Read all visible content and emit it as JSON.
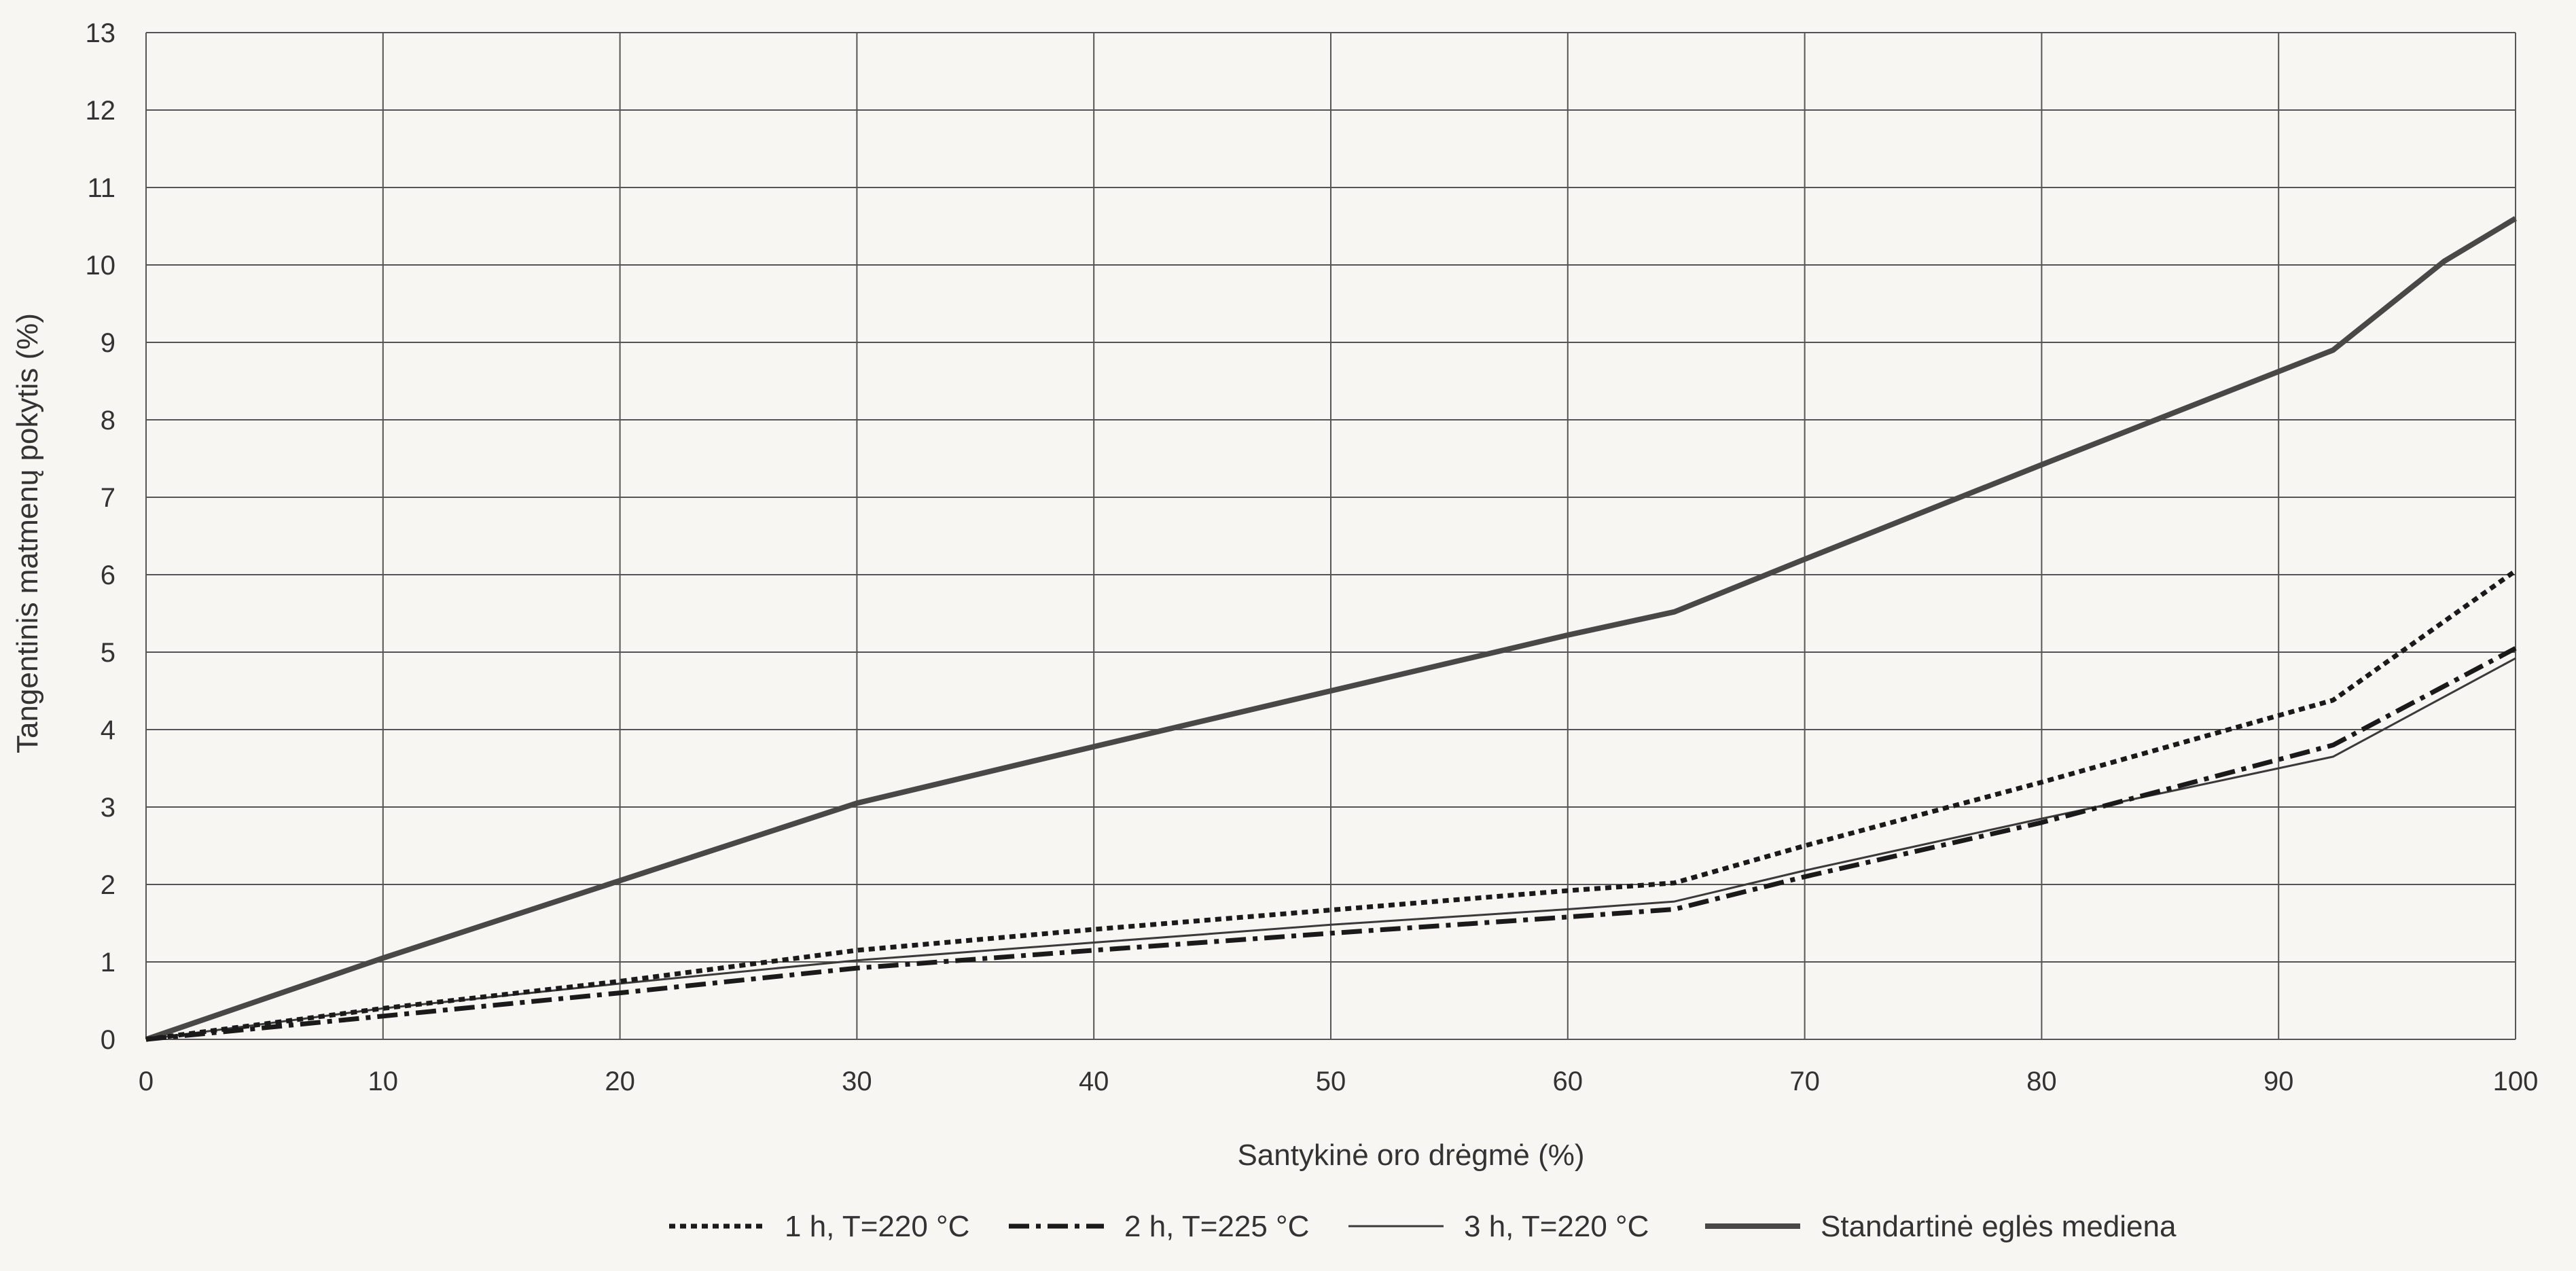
{
  "chart_data": {
    "type": "line",
    "title": "",
    "xlabel": "Santykinė oro drėgmė (%)",
    "ylabel": "Tangentinis matmenų pokytis (%)",
    "xlim": [
      0,
      100
    ],
    "ylim": [
      0,
      13
    ],
    "xticks": [
      "0",
      "10",
      "20",
      "30",
      "40",
      "50",
      "60",
      "70",
      "80",
      "90",
      "100"
    ],
    "yticks": [
      "0",
      "1",
      "2",
      "3",
      "4",
      "5",
      "6",
      "7",
      "8",
      "9",
      "10",
      "11",
      "12",
      "13"
    ],
    "grid": true,
    "legend_position": "bottom",
    "series": [
      {
        "name": "1 h, T=220 °C",
        "style": "dotted",
        "color": "#1a1a1a",
        "points": [
          [
            0,
            0
          ],
          [
            10,
            0.4
          ],
          [
            20,
            0.75
          ],
          [
            30,
            1.15
          ],
          [
            40,
            1.42
          ],
          [
            50,
            1.67
          ],
          [
            60,
            1.92
          ],
          [
            64.5,
            2.02
          ],
          [
            70,
            2.5
          ],
          [
            80,
            3.32
          ],
          [
            92.3,
            4.38
          ],
          [
            100,
            6.05
          ]
        ]
      },
      {
        "name": "2 h, T=225 °C",
        "style": "dashdot",
        "color": "#1a1a1a",
        "points": [
          [
            0,
            0
          ],
          [
            10,
            0.3
          ],
          [
            20,
            0.6
          ],
          [
            30,
            0.92
          ],
          [
            40,
            1.15
          ],
          [
            50,
            1.37
          ],
          [
            60,
            1.58
          ],
          [
            64.5,
            1.68
          ],
          [
            70,
            2.1
          ],
          [
            80,
            2.8
          ],
          [
            92.3,
            3.8
          ],
          [
            100,
            5.05
          ]
        ]
      },
      {
        "name": "3 h, T=220 °C",
        "style": "thin",
        "color": "#3a3a3a",
        "points": [
          [
            0,
            0
          ],
          [
            10,
            0.4
          ],
          [
            20,
            0.72
          ],
          [
            30,
            1.02
          ],
          [
            40,
            1.25
          ],
          [
            50,
            1.48
          ],
          [
            60,
            1.68
          ],
          [
            64.5,
            1.78
          ],
          [
            70,
            2.18
          ],
          [
            80,
            2.85
          ],
          [
            92.3,
            3.65
          ],
          [
            100,
            4.92
          ]
        ]
      },
      {
        "name": "Standartinė eglės mediena",
        "style": "thick",
        "color": "#4a4846",
        "points": [
          [
            0,
            0
          ],
          [
            10,
            1.05
          ],
          [
            20,
            2.05
          ],
          [
            30,
            3.05
          ],
          [
            40,
            3.78
          ],
          [
            50,
            4.5
          ],
          [
            60,
            5.22
          ],
          [
            64.5,
            5.52
          ],
          [
            70,
            6.2
          ],
          [
            80,
            7.42
          ],
          [
            92.3,
            8.9
          ],
          [
            97,
            10.05
          ],
          [
            100,
            10.6
          ]
        ]
      }
    ]
  }
}
